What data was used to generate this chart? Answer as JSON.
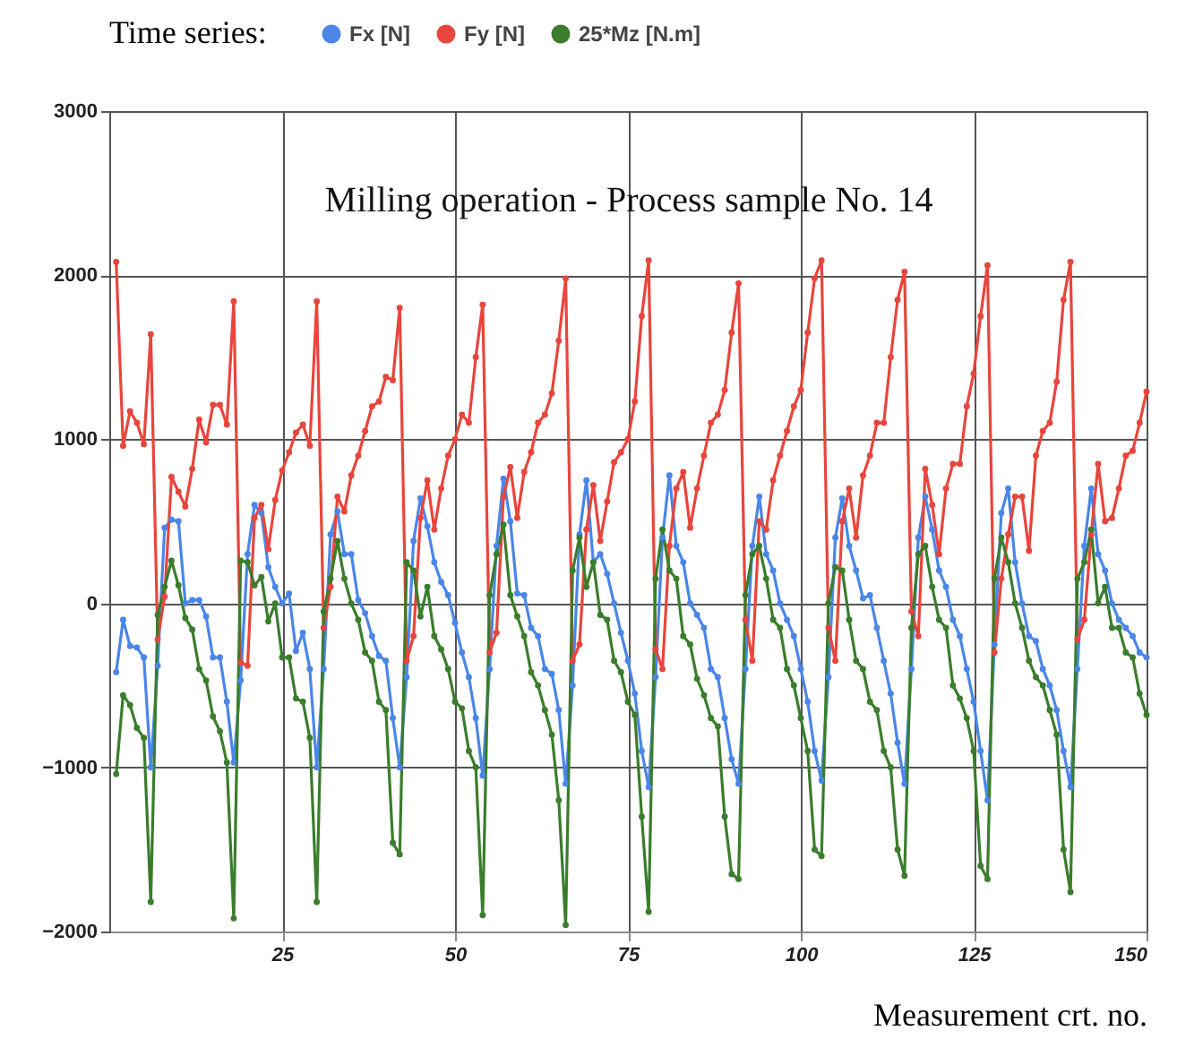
{
  "chart_data": {
    "type": "line",
    "title": "Milling operation - Process sample No. 14",
    "xlabel": "Measurement crt. no.",
    "legend_title": "Time series:",
    "legend": "top",
    "grid": true,
    "marker": "circle",
    "xlim": [
      0,
      150
    ],
    "xticks": [
      25,
      50,
      75,
      100,
      125,
      150
    ],
    "ylim": [
      -2000,
      3000
    ],
    "yticks": [
      -2000,
      -1000,
      0,
      1000,
      2000,
      3000
    ],
    "x": [
      1,
      2,
      3,
      4,
      5,
      6,
      7,
      8,
      9,
      10,
      11,
      12,
      13,
      14,
      15,
      16,
      17,
      18,
      19,
      20,
      21,
      22,
      23,
      24,
      25,
      26,
      27,
      28,
      29,
      30,
      31,
      32,
      33,
      34,
      35,
      36,
      37,
      38,
      39,
      40,
      41,
      42,
      43,
      44,
      45,
      46,
      47,
      48,
      49,
      50,
      51,
      52,
      53,
      54,
      55,
      56,
      57,
      58,
      59,
      60,
      61,
      62,
      63,
      64,
      65,
      66,
      67,
      68,
      69,
      70,
      71,
      72,
      73,
      74,
      75,
      76,
      77,
      78,
      79,
      80,
      81,
      82,
      83,
      84,
      85,
      86,
      87,
      88,
      89,
      90,
      91,
      92,
      93,
      94,
      95,
      96,
      97,
      98,
      99,
      100,
      101,
      102,
      103,
      104,
      105,
      106,
      107,
      108,
      109,
      110,
      111,
      112,
      113,
      114,
      115,
      116,
      117,
      118,
      119,
      120,
      121,
      122,
      123,
      124,
      125,
      126,
      127,
      128,
      129,
      130,
      131,
      132,
      133,
      134,
      135,
      136,
      137,
      138,
      139,
      140,
      141,
      142,
      143,
      144,
      145,
      146,
      147,
      148,
      149,
      150
    ],
    "series": [
      {
        "name": "Fx [N]",
        "color": "#4a86e8",
        "values": [
          -420,
          -100,
          -260,
          -270,
          -330,
          -1000,
          -380,
          460,
          510,
          500,
          0,
          20,
          20,
          -80,
          -330,
          -330,
          -600,
          -970,
          -470,
          300,
          600,
          550,
          220,
          100,
          0,
          60,
          -290,
          -180,
          -400,
          -1000,
          -400,
          420,
          560,
          300,
          300,
          20,
          -60,
          -200,
          -320,
          -350,
          -700,
          -1000,
          -450,
          380,
          640,
          470,
          250,
          130,
          50,
          -120,
          -300,
          -450,
          -700,
          -1050,
          -400,
          350,
          760,
          500,
          60,
          50,
          -150,
          -200,
          -400,
          -430,
          -650,
          -1100,
          -500,
          420,
          750,
          250,
          300,
          180,
          0,
          -180,
          -350,
          -550,
          -900,
          -1120,
          -450,
          400,
          780,
          350,
          250,
          0,
          -70,
          -150,
          -400,
          -450,
          -700,
          -950,
          -1100,
          -400,
          350,
          650,
          300,
          200,
          0,
          -100,
          -200,
          -400,
          -600,
          -900,
          -1080,
          -450,
          400,
          640,
          350,
          200,
          30,
          50,
          -150,
          -350,
          -550,
          -850,
          -1100,
          -400,
          400,
          650,
          450,
          200,
          100,
          -100,
          -200,
          -400,
          -600,
          -900,
          -1200,
          -250,
          550,
          700,
          250,
          0,
          -200,
          -230,
          -400,
          -500,
          -650,
          -900,
          -1120,
          -400,
          350,
          700,
          300,
          200,
          0,
          -100,
          -150,
          -200,
          -300,
          -330
        ]
      },
      {
        "name": "Fy [N]",
        "color": "#e8453c",
        "values": [
          2080,
          960,
          1170,
          1100,
          970,
          1640,
          -220,
          40,
          770,
          680,
          590,
          820,
          1120,
          980,
          1210,
          1210,
          1090,
          1840,
          -360,
          -380,
          520,
          600,
          330,
          630,
          810,
          920,
          1040,
          1090,
          960,
          1840,
          -150,
          100,
          650,
          560,
          780,
          900,
          1050,
          1200,
          1230,
          1380,
          1360,
          1800,
          -350,
          -200,
          520,
          750,
          450,
          700,
          900,
          1000,
          1150,
          1100,
          1500,
          1820,
          -300,
          -180,
          650,
          830,
          520,
          800,
          920,
          1100,
          1150,
          1280,
          1600,
          1980,
          -350,
          -250,
          450,
          720,
          380,
          620,
          860,
          920,
          1000,
          1230,
          1750,
          2090,
          -280,
          -400,
          350,
          700,
          800,
          460,
          700,
          900,
          1100,
          1150,
          1300,
          1650,
          1950,
          -100,
          -350,
          500,
          450,
          750,
          900,
          1050,
          1200,
          1300,
          1650,
          1980,
          2090,
          -150,
          -350,
          500,
          700,
          400,
          780,
          900,
          1100,
          1100,
          1500,
          1850,
          2020,
          -50,
          -200,
          820,
          600,
          300,
          700,
          850,
          850,
          1200,
          1400,
          1750,
          2060,
          -300,
          150,
          420,
          650,
          650,
          320,
          900,
          1050,
          1100,
          1350,
          1850,
          2080,
          -220,
          -100,
          420,
          850,
          500,
          520,
          700,
          900,
          930,
          1100,
          1290
        ]
      },
      {
        "name": "25*Mz [N.m]",
        "color": "#3a7d2c",
        "values": [
          -1040,
          -560,
          -620,
          -760,
          -820,
          -1820,
          -70,
          100,
          260,
          110,
          -90,
          -160,
          -400,
          -470,
          -690,
          -780,
          -970,
          -1920,
          260,
          250,
          110,
          160,
          -110,
          0,
          -330,
          -330,
          -580,
          -600,
          -820,
          -1820,
          -50,
          150,
          380,
          150,
          0,
          -100,
          -300,
          -350,
          -600,
          -650,
          -1460,
          -1530,
          250,
          200,
          -80,
          100,
          -200,
          -280,
          -400,
          -600,
          -640,
          -900,
          -1000,
          -1900,
          50,
          300,
          480,
          50,
          -80,
          -200,
          -420,
          -500,
          -650,
          -800,
          -1200,
          -1960,
          200,
          400,
          100,
          250,
          -70,
          -100,
          -350,
          -420,
          -600,
          -680,
          -1300,
          -1880,
          150,
          450,
          200,
          150,
          -200,
          -250,
          -460,
          -560,
          -700,
          -750,
          -1300,
          -1650,
          -1680,
          50,
          300,
          350,
          150,
          -100,
          -150,
          -400,
          -500,
          -700,
          -900,
          -1500,
          -1540,
          0,
          220,
          200,
          -100,
          -350,
          -400,
          -600,
          -650,
          -900,
          -1000,
          -1500,
          -1660,
          -150,
          300,
          350,
          100,
          -100,
          -150,
          -500,
          -580,
          -700,
          -900,
          -1600,
          -1680,
          150,
          400,
          250,
          0,
          -150,
          -350,
          -450,
          -500,
          -650,
          -800,
          -1500,
          -1760,
          150,
          250,
          450,
          0,
          100,
          -150,
          -150,
          -300,
          -330,
          -550,
          -680
        ]
      }
    ]
  }
}
